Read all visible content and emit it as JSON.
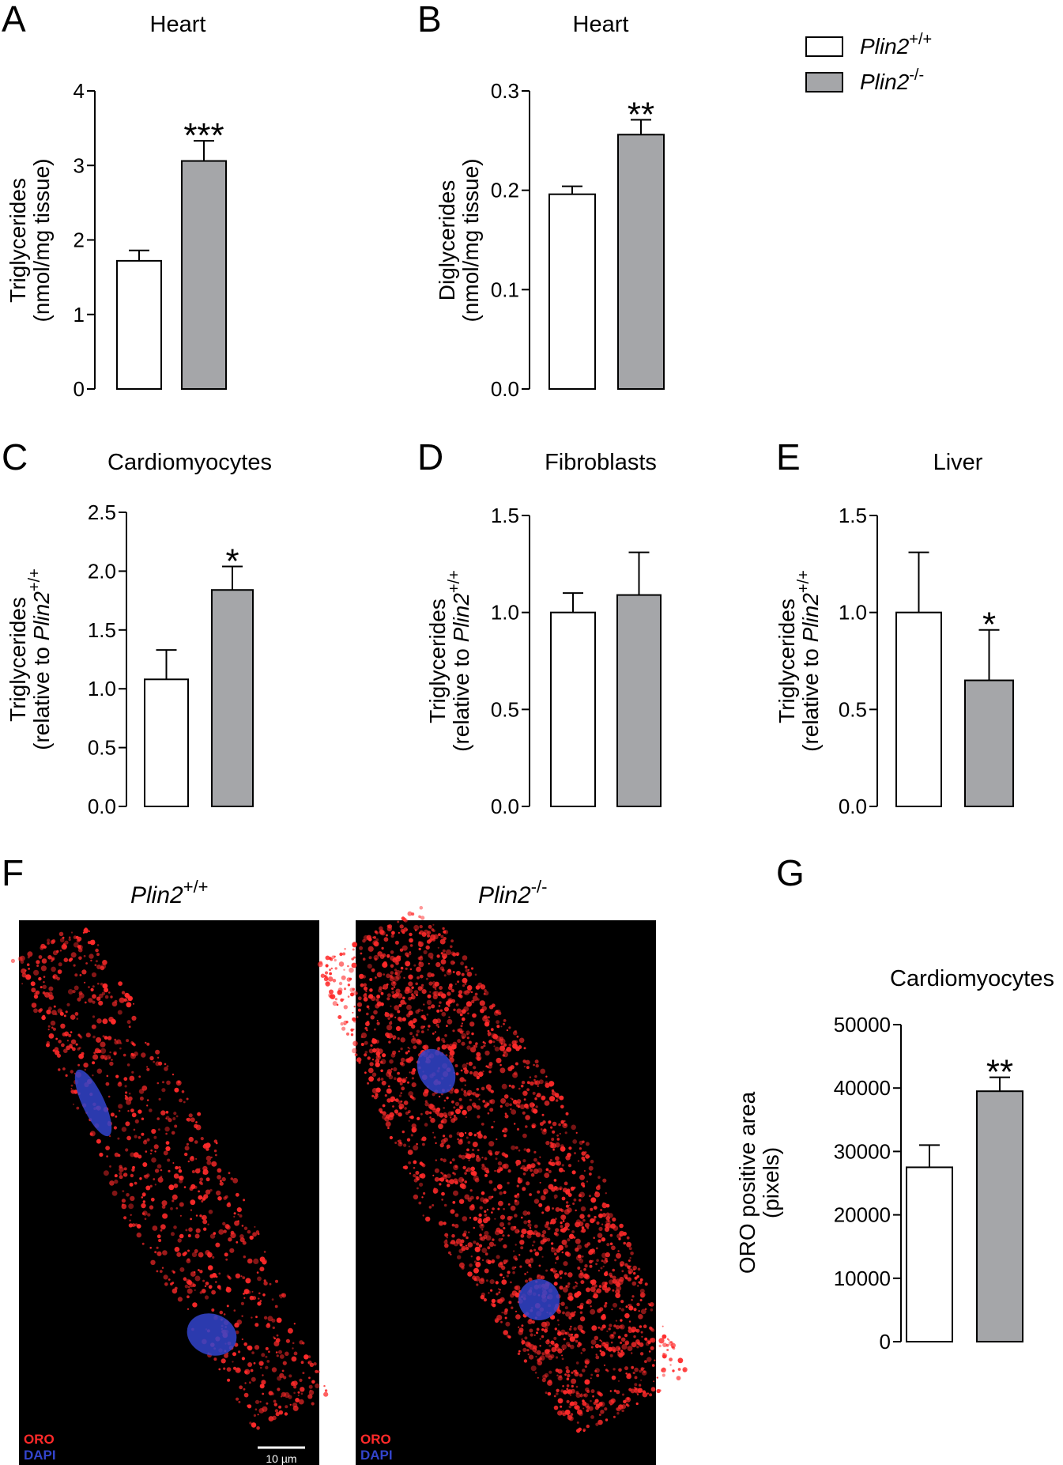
{
  "legend": {
    "placement": "top-right",
    "items": [
      {
        "label": "Plin2",
        "sup": "+/+",
        "fill": "#ffffff"
      },
      {
        "label": "Plin2",
        "sup": "-/-",
        "fill": "#a5a6a9"
      }
    ]
  },
  "images": {
    "panel_letter": "F",
    "left_title": "Plin2",
    "left_sup": "+/+",
    "right_title": "Plin2",
    "right_sup": "-/-",
    "stain_oro": "ORO",
    "stain_dapi": "DAPI",
    "scale_bar": "10 µm"
  },
  "colors": {
    "wildtype": "#ffffff",
    "knockout": "#a5a6a9",
    "oro": "#ff2a2a",
    "dapi": "#3344cc"
  },
  "chart_data": [
    {
      "panel": "A",
      "type": "bar",
      "title": "Heart",
      "ylabel": "Triglycerides",
      "ylabel2": "(nmol/mg tissue)",
      "ylabel2_sup": "",
      "ylim": [
        0,
        4
      ],
      "yticks": [
        "0",
        "1",
        "2",
        "3",
        "4"
      ],
      "categories": [
        "Plin2+/+",
        "Plin2-/-"
      ],
      "values": [
        1.72,
        3.06
      ],
      "errors": [
        0.14,
        0.27
      ],
      "significance": [
        "",
        "***"
      ]
    },
    {
      "panel": "B",
      "type": "bar",
      "title": "Heart",
      "ylabel": "Diglycerides",
      "ylabel2": "(nmol/mg tissue)",
      "ylabel2_sup": "",
      "ylim": [
        0,
        0.3
      ],
      "yticks": [
        "0.0",
        "0.1",
        "0.2",
        "0.3"
      ],
      "categories": [
        "Plin2+/+",
        "Plin2-/-"
      ],
      "values": [
        0.196,
        0.256
      ],
      "errors": [
        0.008,
        0.015
      ],
      "significance": [
        "",
        "**"
      ]
    },
    {
      "panel": "C",
      "type": "bar",
      "title": "Cardiomyocytes",
      "ylabel": "Triglycerides",
      "ylabel2": "(relative to Plin2",
      "ylabel2_sup": "+/+",
      "ylim": [
        0,
        2.5
      ],
      "yticks": [
        "0.0",
        "0.5",
        "1.0",
        "1.5",
        "2.0",
        "2.5"
      ],
      "categories": [
        "Plin2+/+",
        "Plin2-/-"
      ],
      "values": [
        1.08,
        1.84
      ],
      "errors": [
        0.25,
        0.2
      ],
      "significance": [
        "",
        "*"
      ]
    },
    {
      "panel": "D",
      "type": "bar",
      "title": "Fibroblasts",
      "ylabel": "Triglycerides",
      "ylabel2": "(relative to Plin2",
      "ylabel2_sup": "+/+",
      "ylim": [
        0,
        1.5
      ],
      "yticks": [
        "0.0",
        "0.5",
        "1.0",
        "1.5"
      ],
      "categories": [
        "Plin2+/+",
        "Plin2-/-"
      ],
      "values": [
        1.0,
        1.09
      ],
      "errors": [
        0.1,
        0.22
      ],
      "significance": [
        "",
        ""
      ]
    },
    {
      "panel": "E",
      "type": "bar",
      "title": "Liver",
      "ylabel": "Triglycerides",
      "ylabel2": "(relative to Plin2",
      "ylabel2_sup": "+/+",
      "ylim": [
        0,
        1.5
      ],
      "yticks": [
        "0.0",
        "0.5",
        "1.0",
        "1.5"
      ],
      "categories": [
        "Plin2+/+",
        "Plin2-/-"
      ],
      "values": [
        1.0,
        0.65
      ],
      "errors": [
        0.31,
        0.26
      ],
      "significance": [
        "",
        "*"
      ]
    },
    {
      "panel": "G",
      "type": "bar",
      "title": "Cardiomyocytes",
      "ylabel": "ORO positive area",
      "ylabel2": "(pixels)",
      "ylabel2_sup": "",
      "ylim": [
        0,
        50000
      ],
      "yticks": [
        "0",
        "10000",
        "20000",
        "30000",
        "40000",
        "50000"
      ],
      "categories": [
        "Plin2+/+",
        "Plin2-/-"
      ],
      "values": [
        27500,
        39500
      ],
      "errors": [
        3500,
        2200
      ],
      "significance": [
        "",
        "**"
      ]
    }
  ]
}
